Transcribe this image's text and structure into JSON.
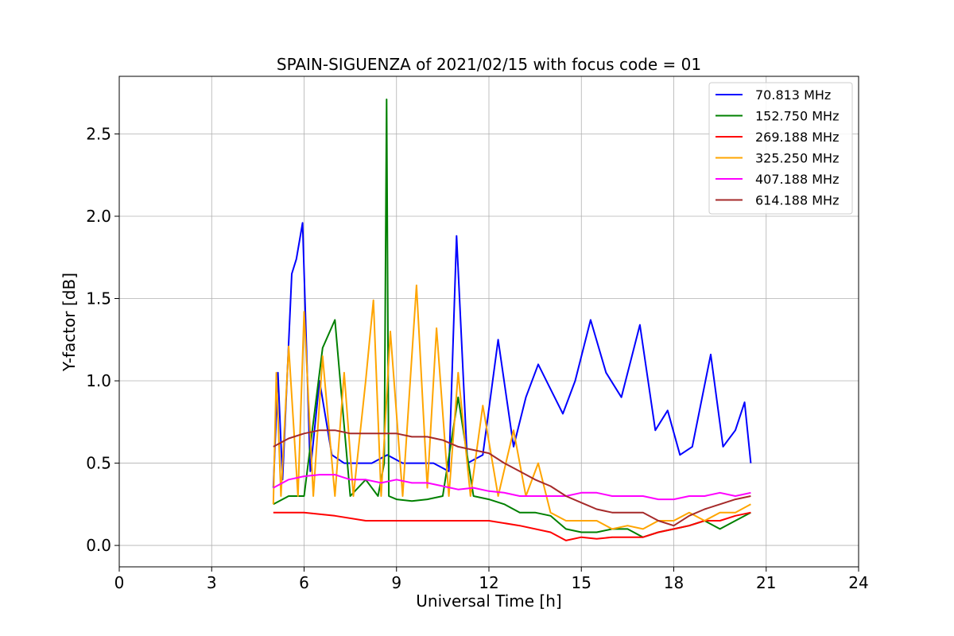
{
  "chart_data": {
    "type": "line",
    "title": "SPAIN-SIGUENZA of 2021/02/15 with focus code = 01",
    "xlabel": "Universal Time [h]",
    "ylabel": "Y-factor [dB]",
    "xlim": [
      0,
      24
    ],
    "ylim": [
      -0.13,
      2.85
    ],
    "xticks": [
      0,
      3,
      6,
      9,
      12,
      15,
      18,
      21,
      24
    ],
    "xtick_labels": [
      "0",
      "3",
      "6",
      "9",
      "12",
      "15",
      "18",
      "21",
      "24"
    ],
    "yticks": [
      0.0,
      0.5,
      1.0,
      1.5,
      2.0,
      2.5
    ],
    "ytick_labels": [
      "0.0",
      "0.5",
      "1.0",
      "1.5",
      "2.0",
      "2.5"
    ],
    "grid": true,
    "legend_position": "top-right",
    "series": [
      {
        "name": " 70.813 MHz",
        "color": "#0000ff",
        "x": [
          5.0,
          5.15,
          5.3,
          5.6,
          5.75,
          5.95,
          6.2,
          6.5,
          6.9,
          7.3,
          7.8,
          8.2,
          8.7,
          9.2,
          9.7,
          10.2,
          10.7,
          10.95,
          11.3,
          11.8,
          12.3,
          12.8,
          13.2,
          13.6,
          14.0,
          14.4,
          14.8,
          15.3,
          15.8,
          16.3,
          16.9,
          17.4,
          17.8,
          18.2,
          18.6,
          19.2,
          19.6,
          20.0,
          20.3,
          20.5
        ],
        "y": [
          0.35,
          1.05,
          0.4,
          1.65,
          1.74,
          1.96,
          0.45,
          1.0,
          0.55,
          0.5,
          0.5,
          0.5,
          0.55,
          0.5,
          0.5,
          0.5,
          0.45,
          1.88,
          0.5,
          0.55,
          1.25,
          0.6,
          0.9,
          1.1,
          0.95,
          0.8,
          1.0,
          1.37,
          1.05,
          0.9,
          1.34,
          0.7,
          0.82,
          0.55,
          0.6,
          1.16,
          0.6,
          0.7,
          0.87,
          0.5
        ]
      },
      {
        "name": "152.750 MHz",
        "color": "#008000",
        "x": [
          5.0,
          5.5,
          6.0,
          6.6,
          7.0,
          7.5,
          8.0,
          8.4,
          8.6,
          8.68,
          8.75,
          9.0,
          9.5,
          10.0,
          10.5,
          11.0,
          11.5,
          12.0,
          12.5,
          13.0,
          13.5,
          14.0,
          14.5,
          15.0,
          15.5,
          16.0,
          16.5,
          17.0,
          17.5,
          18.0,
          18.5,
          19.0,
          19.5,
          20.0,
          20.5
        ],
        "y": [
          0.25,
          0.3,
          0.3,
          1.2,
          1.37,
          0.3,
          0.4,
          0.3,
          0.5,
          2.71,
          0.3,
          0.28,
          0.27,
          0.28,
          0.3,
          0.9,
          0.3,
          0.28,
          0.25,
          0.2,
          0.2,
          0.18,
          0.1,
          0.08,
          0.08,
          0.1,
          0.1,
          0.05,
          0.08,
          0.1,
          0.12,
          0.15,
          0.1,
          0.15,
          0.2
        ]
      },
      {
        "name": "269.188 MHz",
        "color": "#ff0000",
        "x": [
          5.0,
          6.0,
          7.0,
          8.0,
          9.0,
          10.0,
          11.0,
          12.0,
          13.0,
          14.0,
          14.5,
          15.0,
          15.5,
          16.0,
          16.5,
          17.0,
          17.5,
          18.0,
          18.5,
          19.0,
          19.5,
          20.0,
          20.5
        ],
        "y": [
          0.2,
          0.2,
          0.18,
          0.15,
          0.15,
          0.15,
          0.15,
          0.15,
          0.12,
          0.08,
          0.03,
          0.05,
          0.04,
          0.05,
          0.05,
          0.05,
          0.08,
          0.1,
          0.12,
          0.15,
          0.15,
          0.18,
          0.2
        ]
      },
      {
        "name": "325.250 MHz",
        "color": "#ffa500",
        "x": [
          5.0,
          5.1,
          5.25,
          5.5,
          5.8,
          6.0,
          6.3,
          6.6,
          7.0,
          7.3,
          7.6,
          8.0,
          8.25,
          8.5,
          8.8,
          9.2,
          9.65,
          10.0,
          10.3,
          10.7,
          11.0,
          11.4,
          11.8,
          12.3,
          12.8,
          13.2,
          13.6,
          14.0,
          14.5,
          15.0,
          15.5,
          16.0,
          16.5,
          17.0,
          17.5,
          18.0,
          18.5,
          19.0,
          19.5,
          20.0,
          20.5
        ],
        "y": [
          0.25,
          1.05,
          0.3,
          1.21,
          0.3,
          1.42,
          0.3,
          1.15,
          0.3,
          1.05,
          0.3,
          1.0,
          1.49,
          0.3,
          1.3,
          0.3,
          1.58,
          0.35,
          1.32,
          0.3,
          1.05,
          0.3,
          0.85,
          0.3,
          0.7,
          0.3,
          0.5,
          0.2,
          0.15,
          0.15,
          0.15,
          0.1,
          0.12,
          0.1,
          0.15,
          0.15,
          0.2,
          0.15,
          0.2,
          0.2,
          0.25
        ]
      },
      {
        "name": "407.188 MHz",
        "color": "#ff00ff",
        "x": [
          5.0,
          5.5,
          6.0,
          6.5,
          7.0,
          7.5,
          8.0,
          8.5,
          9.0,
          9.5,
          10.0,
          10.5,
          11.0,
          11.5,
          12.0,
          12.5,
          13.0,
          13.5,
          14.0,
          14.5,
          15.0,
          15.5,
          16.0,
          16.5,
          17.0,
          17.5,
          18.0,
          18.5,
          19.0,
          19.5,
          20.0,
          20.5
        ],
        "y": [
          0.35,
          0.4,
          0.42,
          0.43,
          0.43,
          0.4,
          0.4,
          0.38,
          0.4,
          0.38,
          0.38,
          0.36,
          0.34,
          0.35,
          0.33,
          0.32,
          0.3,
          0.3,
          0.3,
          0.3,
          0.32,
          0.32,
          0.3,
          0.3,
          0.3,
          0.28,
          0.28,
          0.3,
          0.3,
          0.32,
          0.3,
          0.32
        ]
      },
      {
        "name": "614.188 MHz",
        "color": "#a52a2a",
        "x": [
          5.0,
          5.5,
          6.0,
          6.5,
          7.0,
          7.5,
          8.0,
          8.5,
          9.0,
          9.5,
          10.0,
          10.5,
          11.0,
          11.5,
          12.0,
          12.5,
          13.0,
          13.5,
          14.0,
          14.5,
          15.0,
          15.5,
          16.0,
          16.5,
          17.0,
          17.5,
          18.0,
          18.5,
          19.0,
          19.5,
          20.0,
          20.5
        ],
        "y": [
          0.6,
          0.65,
          0.68,
          0.7,
          0.7,
          0.68,
          0.68,
          0.68,
          0.68,
          0.66,
          0.66,
          0.64,
          0.6,
          0.58,
          0.56,
          0.5,
          0.45,
          0.4,
          0.36,
          0.3,
          0.26,
          0.22,
          0.2,
          0.2,
          0.2,
          0.15,
          0.12,
          0.18,
          0.22,
          0.25,
          0.28,
          0.3
        ]
      }
    ]
  }
}
